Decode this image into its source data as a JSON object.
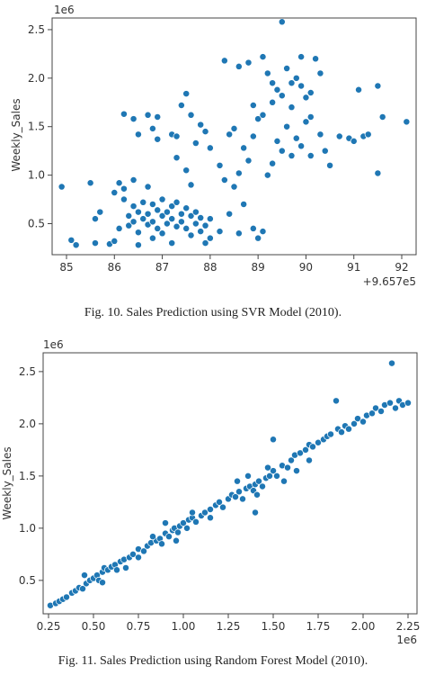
{
  "captions": {
    "fig10": "Fig. 10. Sales Prediction using SVR Model (2010).",
    "fig11": "Fig. 11. Sales Prediction using Random Forest Model (2010)."
  },
  "chart_data": [
    {
      "type": "scatter",
      "title": "",
      "xlabel": "",
      "ylabel": "Weekly_Sales",
      "y_scale_label": "1e6",
      "x_offset_label": "+9.657e5",
      "xlim": [
        84.7,
        92.3
      ],
      "ylim": [
        0.18,
        2.62
      ],
      "x_ticks": [
        85,
        86,
        87,
        88,
        89,
        90,
        91,
        92
      ],
      "x_tick_labels": [
        "85",
        "86",
        "87",
        "88",
        "89",
        "90",
        "91",
        "92"
      ],
      "y_ticks": [
        0.5,
        1.0,
        1.5,
        2.0,
        2.5
      ],
      "y_tick_labels": [
        "0.5",
        "1.0",
        "1.5",
        "2.0",
        "2.5"
      ],
      "grid": false,
      "color": "#1f77b4",
      "points": [
        [
          84.9,
          0.88
        ],
        [
          85.1,
          0.33
        ],
        [
          85.2,
          0.28
        ],
        [
          85.5,
          0.92
        ],
        [
          85.6,
          0.55
        ],
        [
          85.7,
          0.62
        ],
        [
          85.6,
          0.3
        ],
        [
          85.9,
          0.29
        ],
        [
          86.0,
          0.32
        ],
        [
          86.1,
          0.45
        ],
        [
          86.0,
          0.82
        ],
        [
          86.1,
          0.92
        ],
        [
          86.2,
          0.75
        ],
        [
          86.2,
          0.86
        ],
        [
          86.3,
          0.58
        ],
        [
          86.3,
          0.48
        ],
        [
          86.4,
          0.68
        ],
        [
          86.4,
          0.52
        ],
        [
          86.4,
          0.95
        ],
        [
          86.5,
          0.62
        ],
        [
          86.5,
          0.41
        ],
        [
          86.5,
          0.28
        ],
        [
          86.6,
          0.72
        ],
        [
          86.6,
          0.55
        ],
        [
          86.7,
          0.6
        ],
        [
          86.7,
          0.49
        ],
        [
          86.7,
          0.88
        ],
        [
          86.8,
          0.7
        ],
        [
          86.8,
          0.52
        ],
        [
          86.8,
          0.35
        ],
        [
          86.9,
          0.64
        ],
        [
          86.9,
          0.45
        ],
        [
          87.0,
          0.75
        ],
        [
          87.0,
          0.58
        ],
        [
          87.0,
          0.4
        ],
        [
          87.1,
          0.62
        ],
        [
          87.1,
          0.5
        ],
        [
          87.2,
          0.68
        ],
        [
          87.2,
          0.55
        ],
        [
          87.2,
          0.3
        ],
        [
          87.3,
          0.72
        ],
        [
          87.3,
          0.47
        ],
        [
          87.4,
          0.6
        ],
        [
          87.4,
          0.52
        ],
        [
          87.5,
          0.66
        ],
        [
          87.5,
          0.45
        ],
        [
          87.6,
          0.58
        ],
        [
          87.6,
          0.38
        ],
        [
          87.7,
          0.62
        ],
        [
          87.7,
          0.5
        ],
        [
          87.8,
          0.56
        ],
        [
          87.8,
          0.42
        ],
        [
          87.9,
          0.48
        ],
        [
          87.9,
          0.3
        ],
        [
          88.0,
          0.55
        ],
        [
          88.0,
          0.35
        ],
        [
          86.2,
          1.63
        ],
        [
          86.4,
          1.58
        ],
        [
          86.5,
          1.42
        ],
        [
          86.7,
          1.62
        ],
        [
          86.8,
          1.48
        ],
        [
          86.9,
          1.6
        ],
        [
          86.9,
          1.37
        ],
        [
          87.2,
          1.42
        ],
        [
          87.3,
          1.4
        ],
        [
          87.4,
          1.72
        ],
        [
          87.5,
          1.84
        ],
        [
          87.6,
          1.62
        ],
        [
          87.3,
          1.18
        ],
        [
          87.5,
          1.05
        ],
        [
          87.6,
          0.9
        ],
        [
          87.7,
          1.33
        ],
        [
          87.8,
          1.52
        ],
        [
          87.9,
          1.45
        ],
        [
          88.0,
          1.28
        ],
        [
          88.2,
          1.1
        ],
        [
          88.3,
          0.95
        ],
        [
          88.4,
          1.42
        ],
        [
          88.5,
          1.48
        ],
        [
          88.3,
          2.18
        ],
        [
          88.6,
          2.12
        ],
        [
          88.8,
          2.16
        ],
        [
          88.9,
          1.72
        ],
        [
          89.0,
          1.58
        ],
        [
          89.1,
          2.22
        ],
        [
          89.2,
          2.05
        ],
        [
          89.3,
          1.95
        ],
        [
          89.4,
          1.88
        ],
        [
          89.5,
          2.58
        ],
        [
          89.6,
          2.1
        ],
        [
          89.7,
          1.95
        ],
        [
          89.8,
          2.0
        ],
        [
          89.9,
          2.22
        ],
        [
          90.0,
          1.8
        ],
        [
          90.1,
          1.6
        ],
        [
          90.2,
          2.2
        ],
        [
          90.3,
          1.42
        ],
        [
          90.4,
          1.25
        ],
        [
          90.5,
          1.1
        ],
        [
          90.7,
          1.4
        ],
        [
          90.9,
          1.38
        ],
        [
          91.0,
          1.35
        ],
        [
          91.1,
          1.88
        ],
        [
          91.2,
          1.4
        ],
        [
          91.3,
          1.42
        ],
        [
          91.5,
          1.92
        ],
        [
          91.5,
          1.02
        ],
        [
          91.6,
          1.6
        ],
        [
          92.1,
          1.55
        ],
        [
          88.5,
          0.88
        ],
        [
          88.6,
          1.02
        ],
        [
          88.7,
          0.7
        ],
        [
          88.8,
          1.15
        ],
        [
          88.9,
          0.45
        ],
        [
          89.0,
          0.35
        ],
        [
          89.1,
          0.42
        ],
        [
          88.6,
          0.4
        ],
        [
          88.4,
          0.6
        ],
        [
          88.2,
          0.42
        ],
        [
          89.2,
          1.0
        ],
        [
          89.3,
          1.12
        ],
        [
          89.4,
          1.35
        ],
        [
          89.5,
          1.25
        ],
        [
          89.6,
          1.5
        ],
        [
          89.7,
          1.2
        ],
        [
          89.8,
          1.38
        ],
        [
          89.9,
          1.3
        ],
        [
          90.0,
          1.55
        ],
        [
          90.1,
          1.2
        ],
        [
          88.7,
          1.28
        ],
        [
          88.9,
          1.4
        ],
        [
          89.1,
          1.62
        ],
        [
          89.3,
          1.75
        ],
        [
          89.5,
          1.82
        ],
        [
          89.7,
          1.7
        ],
        [
          89.9,
          1.92
        ],
        [
          90.1,
          1.85
        ],
        [
          90.3,
          2.05
        ]
      ]
    },
    {
      "type": "scatter",
      "title": "",
      "xlabel": "",
      "ylabel": "Weekly_Sales",
      "y_scale_label": "1e6",
      "x_scale_label": "1e6",
      "xlim": [
        0.22,
        2.3
      ],
      "ylim": [
        0.18,
        2.68
      ],
      "x_ticks": [
        0.25,
        0.5,
        0.75,
        1.0,
        1.25,
        1.5,
        1.75,
        2.0,
        2.25
      ],
      "x_tick_labels": [
        "0.25",
        "0.50",
        "0.75",
        "1.00",
        "1.25",
        "1.50",
        "1.75",
        "2.00",
        "2.25"
      ],
      "y_ticks": [
        0.5,
        1.0,
        1.5,
        2.0,
        2.5
      ],
      "y_tick_labels": [
        "0.5",
        "1.0",
        "1.5",
        "2.0",
        "2.5"
      ],
      "grid": false,
      "color": "#1f77b4",
      "points": [
        [
          0.26,
          0.26
        ],
        [
          0.29,
          0.28
        ],
        [
          0.31,
          0.3
        ],
        [
          0.33,
          0.32
        ],
        [
          0.35,
          0.34
        ],
        [
          0.38,
          0.38
        ],
        [
          0.4,
          0.4
        ],
        [
          0.42,
          0.43
        ],
        [
          0.44,
          0.42
        ],
        [
          0.46,
          0.47
        ],
        [
          0.48,
          0.5
        ],
        [
          0.5,
          0.52
        ],
        [
          0.52,
          0.55
        ],
        [
          0.53,
          0.5
        ],
        [
          0.55,
          0.58
        ],
        [
          0.56,
          0.62
        ],
        [
          0.58,
          0.6
        ],
        [
          0.6,
          0.63
        ],
        [
          0.62,
          0.65
        ],
        [
          0.63,
          0.6
        ],
        [
          0.65,
          0.68
        ],
        [
          0.67,
          0.7
        ],
        [
          0.7,
          0.72
        ],
        [
          0.72,
          0.75
        ],
        [
          0.75,
          0.8
        ],
        [
          0.78,
          0.78
        ],
        [
          0.8,
          0.83
        ],
        [
          0.82,
          0.86
        ],
        [
          0.85,
          0.88
        ],
        [
          0.87,
          0.9
        ],
        [
          0.88,
          0.85
        ],
        [
          0.9,
          0.95
        ],
        [
          0.92,
          0.92
        ],
        [
          0.94,
          0.98
        ],
        [
          0.95,
          1.0
        ],
        [
          0.97,
          0.96
        ],
        [
          0.98,
          1.02
        ],
        [
          1.0,
          1.05
        ],
        [
          1.02,
          1.0
        ],
        [
          1.03,
          1.08
        ],
        [
          1.05,
          1.1
        ],
        [
          1.07,
          1.06
        ],
        [
          1.1,
          1.12
        ],
        [
          1.12,
          1.15
        ],
        [
          1.15,
          1.18
        ],
        [
          1.18,
          1.22
        ],
        [
          1.2,
          1.25
        ],
        [
          1.22,
          1.2
        ],
        [
          1.25,
          1.28
        ],
        [
          1.27,
          1.32
        ],
        [
          1.29,
          1.3
        ],
        [
          1.31,
          1.35
        ],
        [
          1.33,
          1.28
        ],
        [
          1.35,
          1.38
        ],
        [
          1.37,
          1.4
        ],
        [
          1.39,
          1.36
        ],
        [
          1.4,
          1.42
        ],
        [
          1.42,
          1.45
        ],
        [
          1.44,
          1.4
        ],
        [
          1.46,
          1.48
        ],
        [
          1.48,
          1.5
        ],
        [
          1.5,
          1.55
        ],
        [
          1.52,
          1.5
        ],
        [
          1.55,
          1.6
        ],
        [
          1.58,
          1.58
        ],
        [
          1.6,
          1.65
        ],
        [
          1.62,
          1.7
        ],
        [
          1.65,
          1.72
        ],
        [
          1.68,
          1.75
        ],
        [
          1.7,
          1.8
        ],
        [
          1.72,
          1.78
        ],
        [
          1.75,
          1.82
        ],
        [
          1.78,
          1.85
        ],
        [
          1.8,
          1.88
        ],
        [
          1.82,
          1.9
        ],
        [
          1.85,
          2.22
        ],
        [
          1.86,
          1.95
        ],
        [
          1.88,
          1.92
        ],
        [
          1.9,
          1.98
        ],
        [
          1.92,
          1.95
        ],
        [
          1.95,
          2.0
        ],
        [
          1.97,
          2.05
        ],
        [
          2.0,
          2.02
        ],
        [
          2.02,
          2.08
        ],
        [
          2.05,
          2.1
        ],
        [
          2.07,
          2.15
        ],
        [
          2.1,
          2.12
        ],
        [
          2.12,
          2.18
        ],
        [
          2.15,
          2.2
        ],
        [
          2.16,
          2.58
        ],
        [
          2.18,
          2.15
        ],
        [
          2.2,
          2.22
        ],
        [
          2.22,
          2.18
        ],
        [
          2.25,
          2.2
        ],
        [
          0.45,
          0.55
        ],
        [
          0.55,
          0.48
        ],
        [
          0.68,
          0.62
        ],
        [
          0.83,
          0.92
        ],
        [
          0.96,
          0.88
        ],
        [
          1.05,
          1.15
        ],
        [
          1.15,
          1.1
        ],
        [
          1.3,
          1.45
        ],
        [
          1.36,
          1.5
        ],
        [
          1.41,
          1.32
        ],
        [
          1.47,
          1.58
        ],
        [
          1.5,
          1.85
        ],
        [
          1.56,
          1.45
        ],
        [
          1.63,
          1.55
        ],
        [
          1.7,
          1.65
        ],
        [
          1.4,
          1.15
        ],
        [
          0.9,
          1.05
        ],
        [
          0.75,
          0.72
        ]
      ]
    }
  ]
}
